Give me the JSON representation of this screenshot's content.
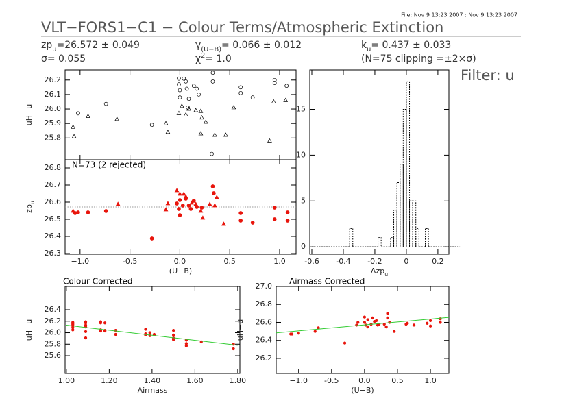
{
  "header": {
    "file": "File: Nov  9 13:23 2007 : Nov  9 13:23 2007",
    "title": "VLT−FORS1−C1 − Colour Terms/Atmospheric Extinction",
    "filter": "Filter: u",
    "stats": [
      {
        "main": "zp",
        "sub": "u",
        "rest": "=26.572 ± 0.049"
      },
      {
        "main": "γ",
        "sub": "(U−B)",
        "rest": "= 0.066 ± 0.012"
      },
      {
        "main": "k",
        "sub": "u",
        "rest": "= 0.437 ± 0.033"
      },
      {
        "main": "σ= 0.055"
      },
      {
        "main": "χ",
        "sup": "2",
        "rest": "=  1.0"
      },
      {
        "main": "(N=75 clipping =±2×σ)"
      }
    ]
  },
  "chart_data": [
    {
      "type": "scatter",
      "ylabel": "uH−u",
      "xlim": [
        -1.15,
        1.165
      ],
      "ylim": [
        25.65,
        26.27
      ],
      "xticks": [
        {
          "value": -1,
          "label": "−1.0"
        },
        -0.5,
        {
          "value": 0,
          "label": "0.0"
        },
        0.5,
        {
          "value": 1,
          "label": "1.0"
        }
      ],
      "xtick_labels": false,
      "yticks": [
        25.8,
        25.9,
        {
          "value": 26,
          "label": "26.0"
        },
        26.1,
        26.2
      ],
      "series": [
        {
          "marker": "circle-open",
          "color": "#000000",
          "x": [
            -1.02,
            -0.74,
            -0.28,
            -0.01,
            0.04,
            -0.01,
            0,
            0.06,
            0.07,
            0.09,
            0.08,
            0,
            0.14,
            0.17,
            0.19,
            0.33,
            0.33,
            0.61,
            0.61,
            0.73,
            0.95,
            0.95,
            1.07,
            0.32
          ],
          "values": [
            25.97,
            26.035,
            25.89,
            26.21,
            26.21,
            26.17,
            26.13,
            26.19,
            26.14,
            26.07,
            26.01,
            26.08,
            26.16,
            26.14,
            26.1,
            26.25,
            26.19,
            26.15,
            26.11,
            26.08,
            26.2,
            26.18,
            26.16,
            25.69
          ]
        },
        {
          "marker": "triangle-open",
          "color": "#000000",
          "x": [
            -1.07,
            -1.06,
            -0.92,
            -0.63,
            -0.14,
            -0.12,
            -0.01,
            0.02,
            0.09,
            0.16,
            0.21,
            0.22,
            0.26,
            0.21,
            0.35,
            0.46,
            0.54,
            0.9,
            0.94,
            1.06,
            0.06
          ],
          "values": [
            25.875,
            25.81,
            25.95,
            25.93,
            25.9,
            25.84,
            25.97,
            26.02,
            26.0,
            25.99,
            25.985,
            25.94,
            25.91,
            25.83,
            25.82,
            25.82,
            26.01,
            25.78,
            26.05,
            26.06,
            25.96
          ]
        }
      ]
    },
    {
      "type": "scatter",
      "title": "N=73 (2 rejected)",
      "ylabel": {
        "text": "zp",
        "sub": "u"
      },
      "xlabel": "(U−B)",
      "xlim": [
        -1.15,
        1.165
      ],
      "ylim": [
        26.296,
        26.848
      ],
      "xticks": [
        {
          "value": -1,
          "label": "−1.0"
        },
        -0.5,
        {
          "value": 0,
          "label": "0.0"
        },
        0.5,
        {
          "value": 1,
          "label": "1.0"
        }
      ],
      "yticks": [
        26.3,
        26.4,
        26.5,
        26.6,
        26.7,
        26.8
      ],
      "reference_line": 26.572,
      "series": [
        {
          "marker": "circle",
          "color": "#e8150c",
          "x": [
            -1.05,
            -1.02,
            -0.92,
            -0.74,
            -0.28,
            -0.03,
            -0.01,
            0,
            0.03,
            0.06,
            0.09,
            0.11,
            0.14,
            0.17,
            0.22,
            0.33,
            0.34,
            0.61,
            0.61,
            0.73,
            0.95,
            0.95,
            1.08,
            1.08,
            0
          ],
          "values": [
            26.536,
            26.54,
            26.54,
            26.548,
            26.388,
            26.592,
            26.56,
            26.524,
            26.58,
            26.62,
            26.58,
            26.56,
            26.608,
            26.572,
            26.568,
            26.692,
            26.652,
            26.536,
            26.492,
            26.48,
            26.568,
            26.5,
            26.54,
            26.492,
            26.612
          ]
        },
        {
          "marker": "triangle",
          "color": "#e8150c",
          "x": [
            -1.07,
            -0.62,
            -0.14,
            -0.12,
            -0.03,
            0,
            0.04,
            0.06,
            0.12,
            0.16,
            0.21,
            0.23,
            0.3,
            0.35,
            0.44,
            0.37
          ],
          "values": [
            26.548,
            26.588,
            26.556,
            26.592,
            26.668,
            26.648,
            26.648,
            26.632,
            26.596,
            26.588,
            26.548,
            26.508,
            26.588,
            26.58,
            26.472,
            26.628
          ]
        }
      ]
    },
    {
      "type": "histogram",
      "xlabel": {
        "text": "Δzp",
        "sub": "u"
      },
      "color": "#000000",
      "xlim": [
        -0.613,
        0.27
      ],
      "ylim": [
        -0.81,
        19.3
      ],
      "xticks": [
        -0.6,
        -0.4,
        -0.2,
        0,
        0.2
      ],
      "yticks": [
        0,
        5,
        10,
        15
      ],
      "bins": [
        -0.6,
        -0.36,
        -0.34,
        -0.18,
        -0.16,
        -0.1,
        -0.08,
        -0.06,
        -0.04,
        -0.02,
        0,
        0.02,
        0.04,
        0.06,
        0.08,
        0.12,
        0.14,
        0.34
      ],
      "counts": [
        0,
        2,
        0,
        1,
        0,
        1,
        4,
        7,
        9,
        15,
        18,
        5,
        5,
        2,
        0,
        2,
        0
      ]
    },
    {
      "type": "scatter",
      "title": "Colour Corrected",
      "xlabel": "Airmass",
      "ylabel": "uH−u",
      "xlim": [
        0.994,
        1.81
      ],
      "ylim": [
        25.29,
        26.806
      ],
      "xticks": [
        {
          "value": 1,
          "label": "1.00"
        },
        {
          "value": 1.2,
          "label": "1.20"
        },
        {
          "value": 1.4,
          "label": "1.40"
        },
        {
          "value": 1.6,
          "label": "1.60"
        },
        {
          "value": 1.8,
          "label": "1.80"
        }
      ],
      "yticks": [
        25.6,
        25.8,
        {
          "value": 26,
          "label": "26.0"
        },
        26.2,
        26.4
      ],
      "series": [
        {
          "marker": "dot",
          "color": "#e8150c",
          "x": [
            1.03,
            1.03,
            1.03,
            1.03,
            1.03,
            1.03,
            1.09,
            1.09,
            1.09,
            1.09,
            1.09,
            1.09,
            1.16,
            1.16,
            1.16,
            1.16,
            1.18,
            1.18,
            1.18,
            1.23,
            1.23,
            1.37,
            1.37,
            1.37,
            1.39,
            1.39,
            1.41,
            1.41,
            1.5,
            1.5,
            1.5,
            1.5,
            1.56,
            1.56,
            1.56,
            1.63,
            1.78,
            1.78
          ],
          "values": [
            26.18,
            26.16,
            26.12,
            26.09,
            26.05,
            26.14,
            26.19,
            26.13,
            26.1,
            26.02,
            25.91,
            26.17,
            26.19,
            26.05,
            26.03,
            26.17,
            26.04,
            26.03,
            26.17,
            26.04,
            25.97,
            26.06,
            25.98,
            25.96,
            25.95,
            26.0,
            25.97,
            25.96,
            26.04,
            25.96,
            25.91,
            25.88,
            25.87,
            25.81,
            25.77,
            25.84,
            25.8,
            25.72
          ]
        },
        {
          "marker": "line",
          "color": "#33cc33",
          "x": [
            1.0,
            1.8
          ],
          "values": [
            26.131,
            25.781
          ]
        }
      ]
    },
    {
      "type": "scatter",
      "title": "Airmass Corrected",
      "xlabel": "(U−B)",
      "ylabel": "uH−u",
      "xlim": [
        -1.34,
        1.28
      ],
      "ylim": [
        26.032,
        27.0
      ],
      "xticks": [
        {
          "value": -1,
          "label": "−1.0"
        },
        -0.5,
        {
          "value": 0,
          "label": "0.0"
        },
        0.5,
        {
          "value": 1,
          "label": "1.0"
        }
      ],
      "yticks": [
        26.2,
        26.4,
        26.6,
        26.8,
        {
          "value": 27,
          "label": "27.0"
        }
      ],
      "series": [
        {
          "marker": "dot",
          "color": "#e8150c",
          "x": [
            -1.12,
            -1.1,
            -1.0,
            -0.75,
            -0.7,
            -0.3,
            -0.12,
            -0.1,
            0,
            0,
            0.02,
            0.05,
            0.05,
            0.1,
            0.12,
            0.15,
            0.18,
            0.2,
            0.22,
            0.3,
            0.33,
            0.35,
            0.35,
            0.38,
            0.45,
            0.63,
            0.65,
            0.75,
            0.95,
            1.0,
            1.0,
            1.15,
            1.15
          ],
          "values": [
            26.47,
            26.47,
            26.48,
            26.5,
            26.54,
            26.37,
            26.57,
            26.6,
            26.66,
            26.6,
            26.57,
            26.63,
            26.55,
            26.58,
            26.65,
            26.61,
            26.62,
            26.57,
            26.58,
            26.58,
            26.55,
            26.7,
            26.65,
            26.6,
            26.5,
            26.58,
            26.59,
            26.57,
            26.59,
            26.62,
            26.56,
            26.64,
            26.6
          ]
        },
        {
          "marker": "line",
          "color": "#33cc33",
          "x": [
            -1.34,
            1.28
          ],
          "values": [
            26.484,
            26.656
          ]
        }
      ]
    }
  ]
}
